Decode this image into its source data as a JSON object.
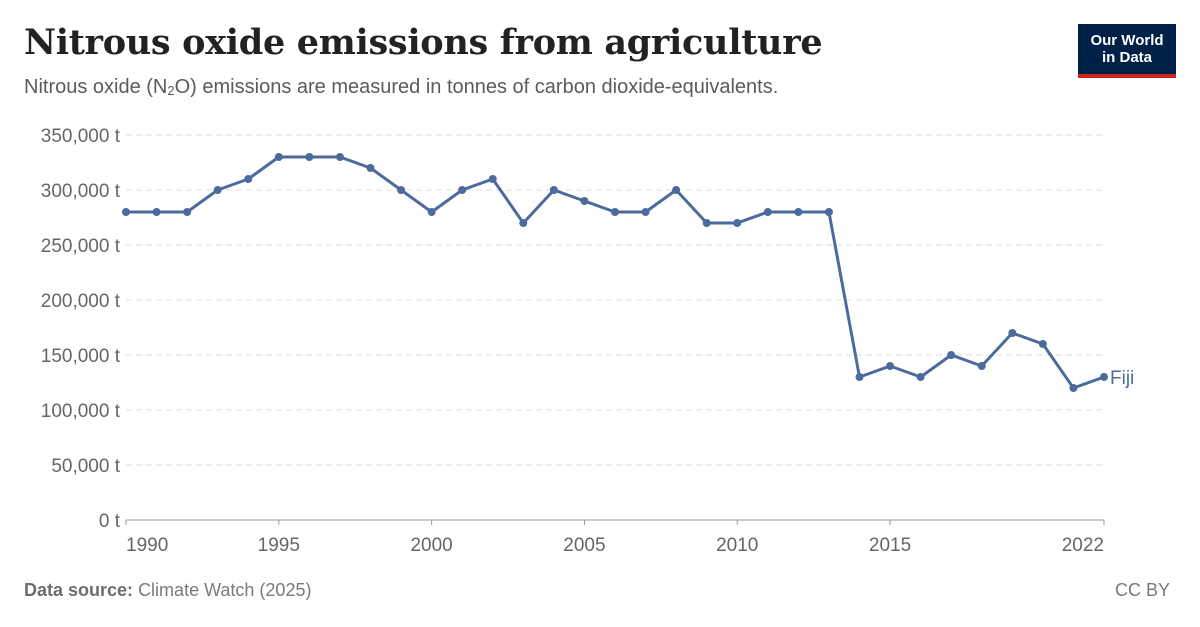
{
  "header": {
    "title": "Nitrous oxide emissions from agriculture",
    "subtitle_pre": "Nitrous oxide (N",
    "subtitle_sub": "2",
    "subtitle_post": "O) emissions are measured in tonnes of carbon dioxide-equivalents.",
    "logo_line1": "Our World",
    "logo_line2": "in Data"
  },
  "footer": {
    "source_label": "Data source:",
    "source_text": "Climate Watch (2025)",
    "license": "CC BY"
  },
  "colors": {
    "series": "#4c6a9c",
    "grid": "#dddddd",
    "logo_bg": "#002147",
    "logo_accent": "#ce261e"
  },
  "chart_data": {
    "type": "line",
    "title": "Nitrous oxide emissions from agriculture",
    "xlabel": "",
    "ylabel": "",
    "xlim": [
      1990,
      2022
    ],
    "ylim": [
      0,
      350000
    ],
    "grid": true,
    "y_ticks": [
      0,
      50000,
      100000,
      150000,
      200000,
      250000,
      300000,
      350000
    ],
    "y_tick_labels": [
      "0 t",
      "50,000 t",
      "100,000 t",
      "150,000 t",
      "200,000 t",
      "250,000 t",
      "300,000 t",
      "350,000 t"
    ],
    "x_ticks": [
      1990,
      1995,
      2000,
      2005,
      2010,
      2015,
      2022
    ],
    "x_tick_labels": [
      "1990",
      "1995",
      "2000",
      "2005",
      "2010",
      "2015",
      "2022"
    ],
    "series": [
      {
        "name": "Fiji",
        "x": [
          1990,
          1991,
          1992,
          1993,
          1994,
          1995,
          1996,
          1997,
          1998,
          1999,
          2000,
          2001,
          2002,
          2003,
          2004,
          2005,
          2006,
          2007,
          2008,
          2009,
          2010,
          2011,
          2012,
          2013,
          2014,
          2015,
          2016,
          2017,
          2018,
          2019,
          2020,
          2021,
          2022
        ],
        "values": [
          280000,
          280000,
          280000,
          300000,
          310000,
          330000,
          330000,
          330000,
          320000,
          300000,
          280000,
          300000,
          310000,
          270000,
          300000,
          290000,
          280000,
          280000,
          300000,
          270000,
          270000,
          280000,
          280000,
          280000,
          130000,
          140000,
          130000,
          150000,
          140000,
          170000,
          160000,
          120000,
          130000
        ]
      }
    ]
  }
}
